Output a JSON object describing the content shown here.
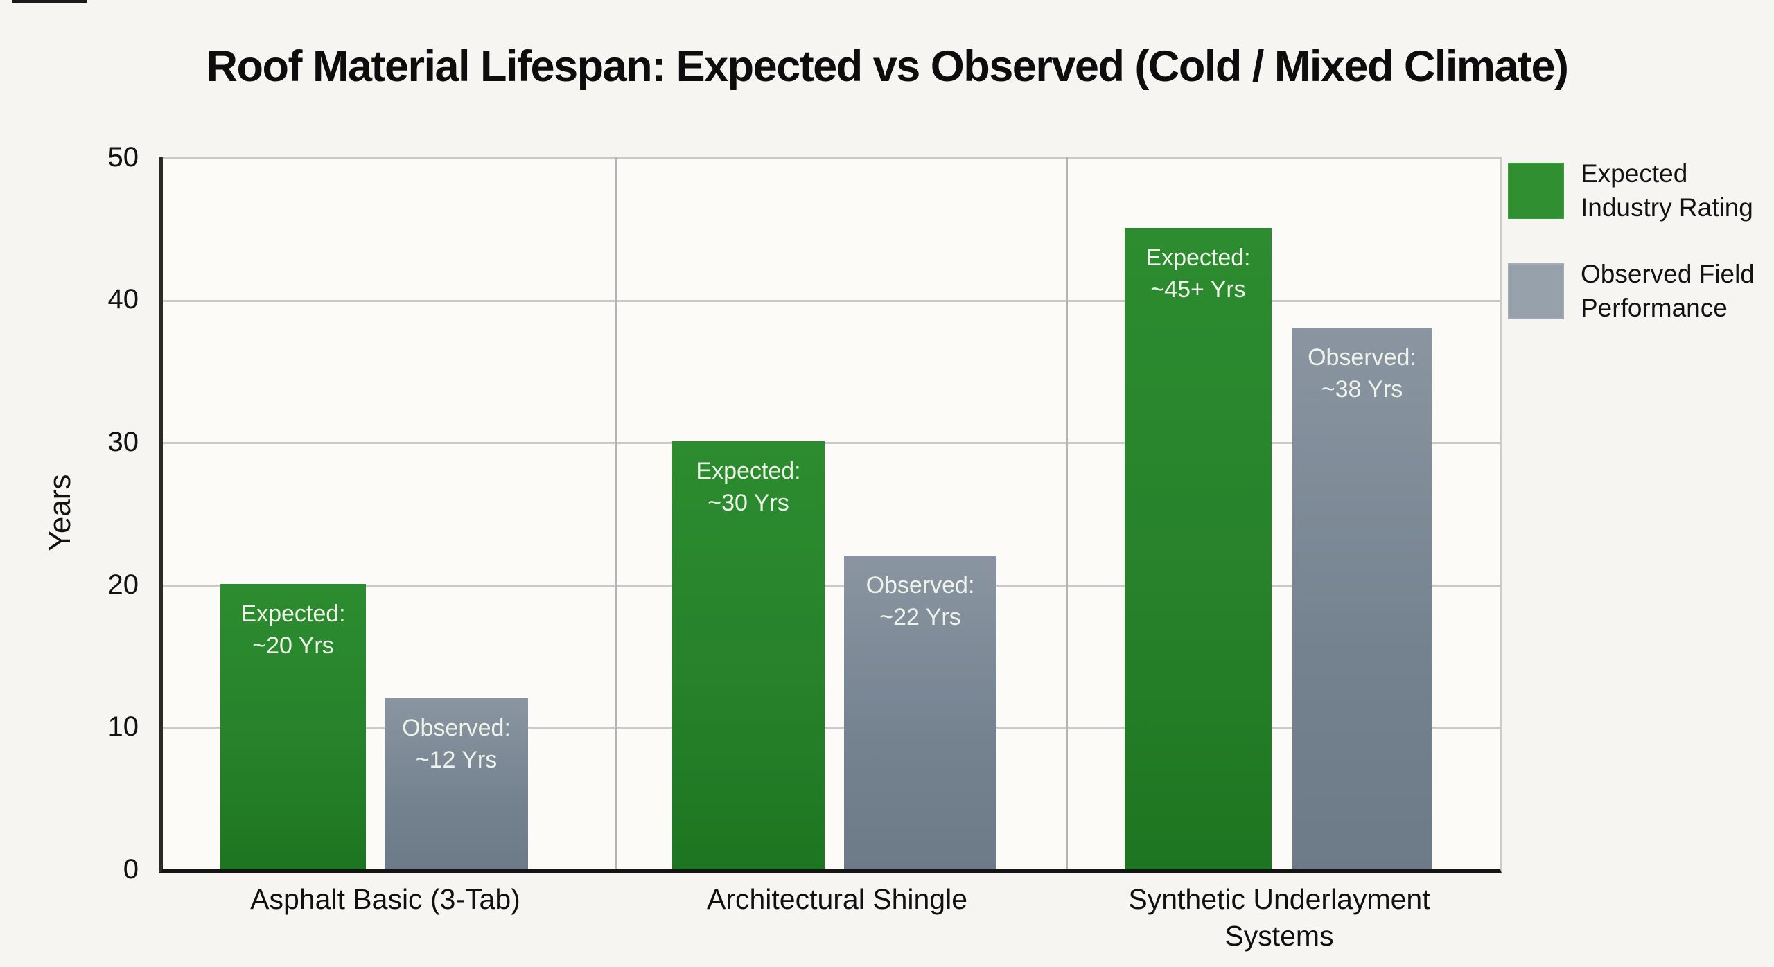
{
  "title": {
    "text": "Roof Material Lifespan: Expected vs Observed (Cold / Mixed Climate)"
  },
  "y_axis": {
    "label": "Years",
    "ticks": [
      "50",
      "40",
      "30",
      "20",
      "10",
      "0"
    ]
  },
  "categories": [
    {
      "line1": "Asphalt Basic (3-Tab)",
      "line2": ""
    },
    {
      "line1": "Architectural Shingle",
      "line2": ""
    },
    {
      "line1": "Synthetic Underlayment",
      "line2": "Systems"
    }
  ],
  "bars": [
    {
      "series": "Expected Industry Rating",
      "category": "Asphalt Basic (3-Tab)",
      "value": 20,
      "label_line1": "Expected:",
      "label_line2": "~20 Yrs"
    },
    {
      "series": "Observed Field Performance",
      "category": "Asphalt Basic (3-Tab)",
      "value": 12,
      "label_line1": "Observed:",
      "label_line2": "~12 Yrs"
    },
    {
      "series": "Expected Industry Rating",
      "category": "Architectural Shingle",
      "value": 30,
      "label_line1": "Expected:",
      "label_line2": "~30 Yrs"
    },
    {
      "series": "Observed Field Performance",
      "category": "Architectural Shingle",
      "value": 22,
      "label_line1": "Observed:",
      "label_line2": "~22 Yrs"
    },
    {
      "series": "Expected Industry Rating",
      "category": "Synthetic Underlayment Systems",
      "value": 45,
      "label_line1": "Expected:",
      "label_line2": "~45+ Yrs"
    },
    {
      "series": "Observed Field Performance",
      "category": "Synthetic Underlayment Systems",
      "value": 38,
      "label_line1": "Observed:",
      "label_line2": "~38 Yrs"
    }
  ],
  "legend": {
    "items": [
      {
        "line1": "Expected",
        "line2": "Industry Rating"
      },
      {
        "line1": "Observed Field",
        "line2": "Performance"
      }
    ]
  },
  "colors": {
    "expected": "#27822b",
    "observed": "#74828f",
    "legend_expected": "#2f8f31",
    "legend_observed": "#97a1ac",
    "grid": "#cac9c7",
    "axis": "#141414",
    "background": "#f7f5f2"
  },
  "chart_data": {
    "type": "bar",
    "title": "Roof Material Lifespan: Expected vs Observed (Cold / Mixed Climate)",
    "xlabel": "",
    "ylabel": "Years",
    "ylim": [
      0,
      50
    ],
    "yticks": [
      0,
      10,
      20,
      30,
      40,
      50
    ],
    "grid": true,
    "legend_position": "top-right",
    "categories": [
      "Asphalt Basic (3-Tab)",
      "Architectural Shingle",
      "Synthetic Underlayment Systems"
    ],
    "series": [
      {
        "name": "Expected Industry Rating",
        "color": "#27822b",
        "values": [
          20,
          30,
          45
        ],
        "bar_labels": [
          "Expected: ~20 Yrs",
          "Expected: ~30 Yrs",
          "Expected: ~45+ Yrs"
        ]
      },
      {
        "name": "Observed Field Performance",
        "color": "#74828f",
        "values": [
          12,
          22,
          38
        ],
        "bar_labels": [
          "Observed: ~12 Yrs",
          "Observed: ~22 Yrs",
          "Observed: ~38 Yrs"
        ]
      }
    ]
  }
}
